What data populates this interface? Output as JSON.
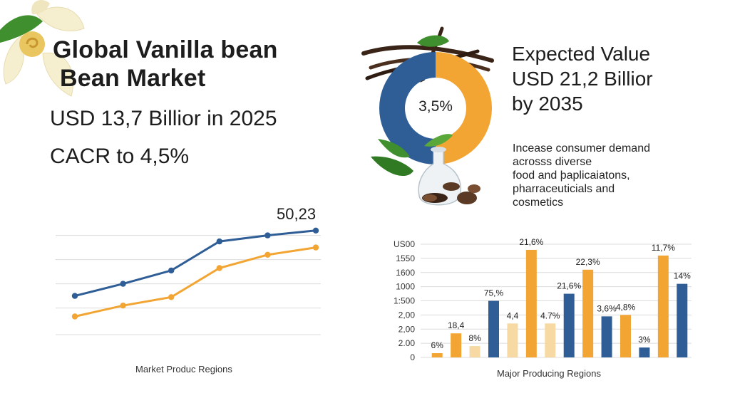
{
  "header": {
    "title_line1": "Global Vanilla bean",
    "title_line2": "Bean Market",
    "stat_value": "USD 13,7 Billior in 2025",
    "stat_cagr": "CACR to 4,5%"
  },
  "right_panel": {
    "expected_line1": "Expected Value",
    "expected_line2": "USD 21,2 Billior",
    "expected_line3": "by 2035",
    "desc_line1": "Incease consumer demand",
    "desc_line2": "acrosss diverse",
    "desc_line3": "food and þaplicaiatons,",
    "desc_line4": "pharraceuticials and",
    "desc_line5": "cosmetics"
  },
  "colors": {
    "blue": "#2f5d96",
    "orange": "#f2a533",
    "light": "#f6d9a3",
    "grid": "#dcdcdc",
    "leaf": "#3f8f2e",
    "flower": "#f6efcf"
  },
  "chart_data": [
    {
      "type": "pie",
      "label": "3,5%",
      "slices": [
        {
          "color": "blue",
          "value": 50
        },
        {
          "color": "orange",
          "value": 50
        }
      ]
    },
    {
      "type": "line",
      "xlabel": "Market Produc Regions",
      "x": [
        1,
        2,
        3,
        4,
        5,
        6
      ],
      "y_range": [
        0,
        100
      ],
      "annotation": "50,23",
      "series": [
        {
          "color": "blue",
          "values": [
            32,
            42,
            53,
            77,
            82,
            86
          ]
        },
        {
          "color": "orange",
          "values": [
            15,
            24,
            31,
            55,
            66,
            72
          ]
        }
      ]
    },
    {
      "type": "bar",
      "xlabel": "Major Producing Regions",
      "y_tick_labels": [
        "US00",
        "1550",
        "1600",
        "1000",
        "1:500",
        "2,00",
        "2,00",
        "2.00",
        "0"
      ],
      "ylim": [
        0,
        8
      ],
      "bars": [
        {
          "value": 0.3,
          "color": "orange",
          "label": "6%"
        },
        {
          "value": 1.7,
          "color": "orange",
          "label": "18,4"
        },
        {
          "value": 0.8,
          "color": "light",
          "label": "8%"
        },
        {
          "value": 4.0,
          "color": "blue",
          "label": "75,%"
        },
        {
          "value": 2.4,
          "color": "light",
          "label": "4,4"
        },
        {
          "value": 7.6,
          "color": "orange",
          "label": "21,6%"
        },
        {
          "value": 2.4,
          "color": "light",
          "label": "4.7%"
        },
        {
          "value": 4.5,
          "color": "blue",
          "label": "21,6%"
        },
        {
          "value": 6.2,
          "color": "orange",
          "label": "22,3%"
        },
        {
          "value": 2.9,
          "color": "blue",
          "label": "3,6%"
        },
        {
          "value": 3.0,
          "color": "orange",
          "label": "4,8%"
        },
        {
          "value": 0.7,
          "color": "blue",
          "label": "3%"
        },
        {
          "value": 7.2,
          "color": "orange",
          "label": "11,7%"
        },
        {
          "value": 5.2,
          "color": "blue",
          "label": "14%"
        }
      ]
    }
  ]
}
